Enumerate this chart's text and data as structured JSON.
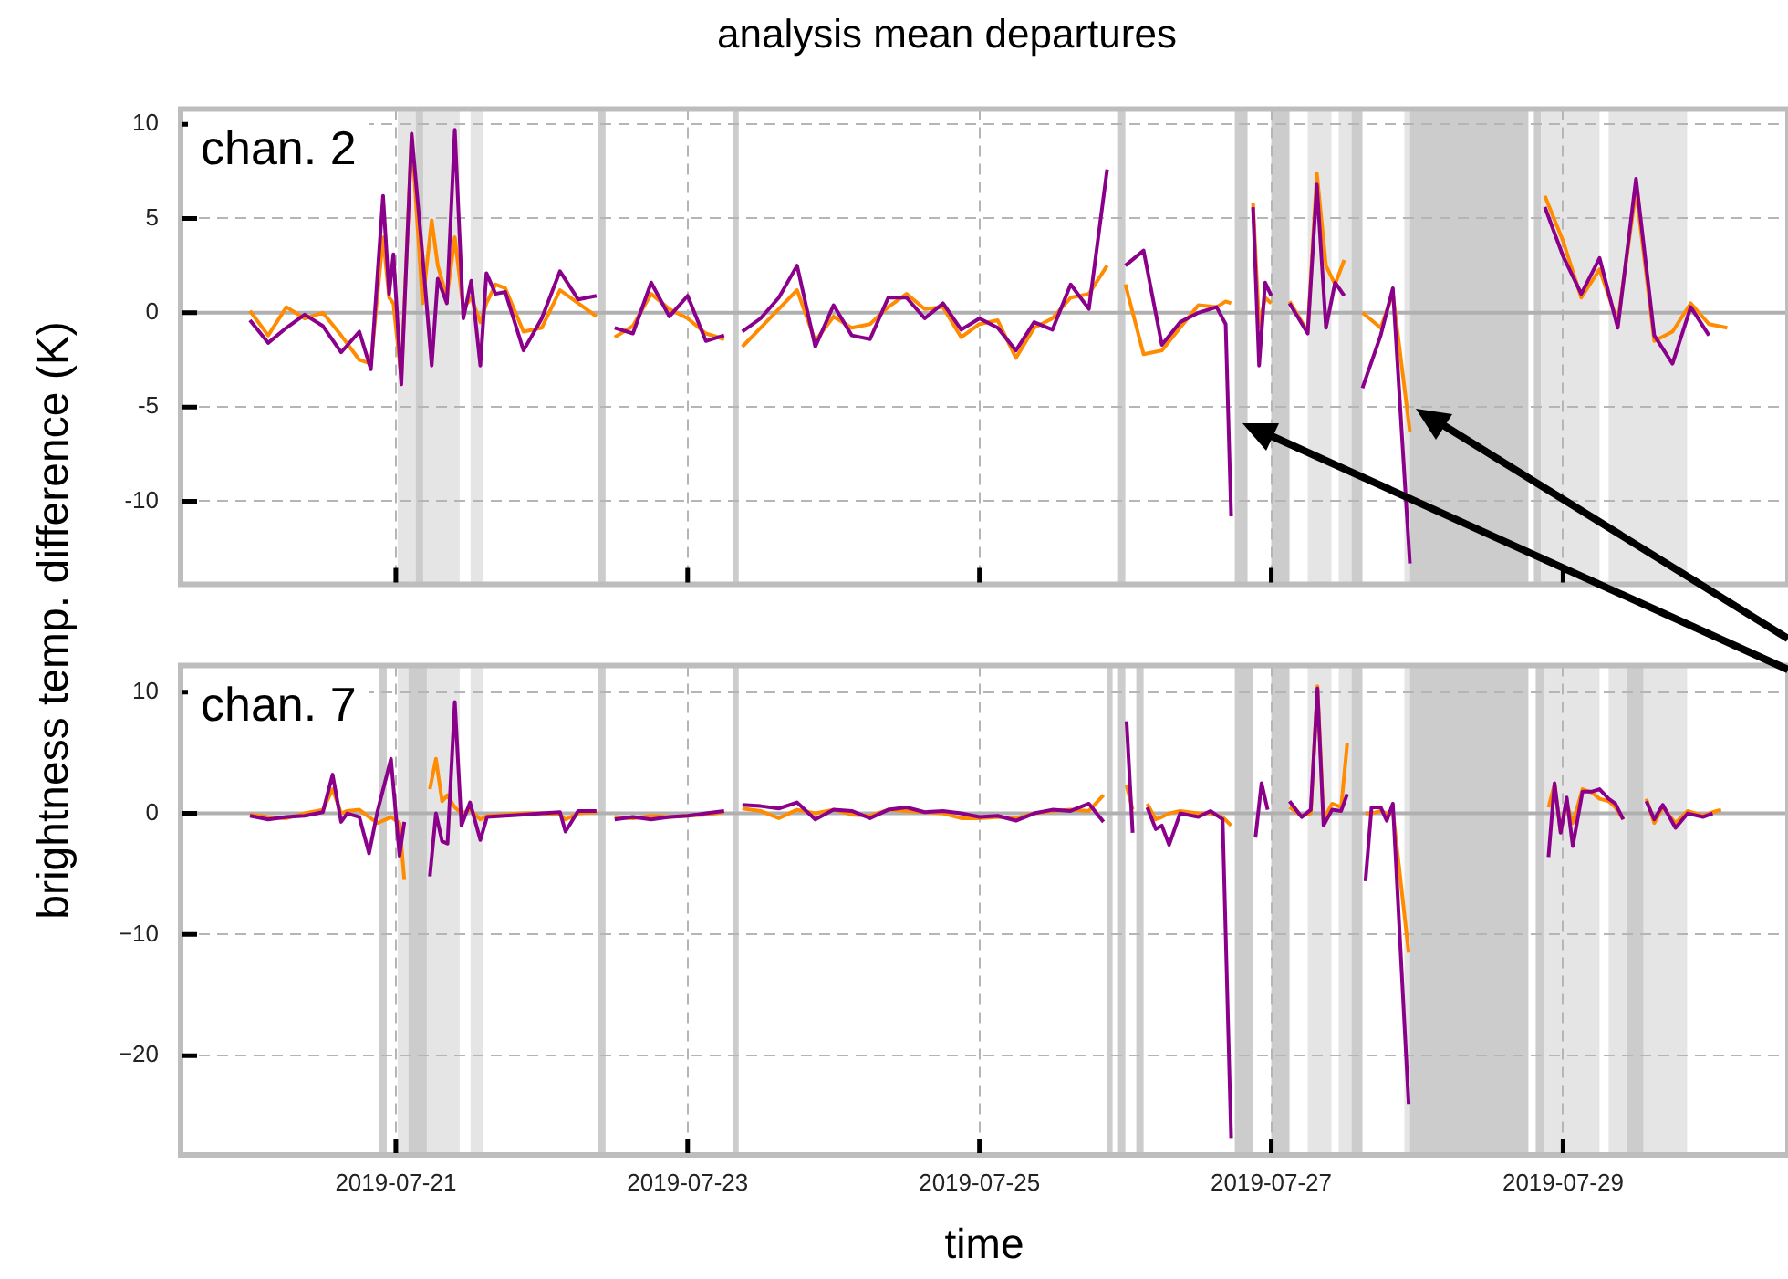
{
  "chart_data": [
    {
      "type": "line",
      "title": "analysis mean departures",
      "ylabel": "brightness temp. difference (K)",
      "annotations": [
        "chan. 2"
      ],
      "x": [
        "2019-07-20T00:00",
        "2019-07-20T03:00",
        "2019-07-20T06:00",
        "2019-07-20T09:00",
        "2019-07-20T12:00",
        "2019-07-20T15:00",
        "2019-07-20T18:00",
        "2019-07-20T19:54",
        "2019-07-20T21:54",
        "2019-07-20T22:54",
        "2019-07-20T23:36",
        "2019-07-21T00:54",
        "2019-07-21T02:36",
        "2019-07-21T04:24",
        "2019-07-21T05:54",
        "2019-07-21T06:54",
        "2019-07-21T08:24",
        "2019-07-21T09:42",
        "2019-07-21T11:06",
        "2019-07-21T12:24",
        "2019-07-21T13:54",
        "2019-07-21T14:54",
        "2019-07-21T16:24",
        "2019-07-21T18:00",
        "2019-07-21T21:00",
        "2019-07-22T00:00",
        "2019-07-22T03:00",
        "2019-07-22T06:00",
        "2019-07-22T09:00",
        "2019-07-22T10:30",
        "2019-07-22T12:00",
        "2019-07-22T15:00",
        "2019-07-22T18:00",
        "2019-07-22T21:00",
        "2019-07-23T00:00",
        "2019-07-23T03:00",
        "2019-07-23T06:00",
        "2019-07-23T08:00",
        "2019-07-23T09:00",
        "2019-07-23T12:00",
        "2019-07-23T15:00",
        "2019-07-23T18:00",
        "2019-07-23T21:00",
        "2019-07-24T00:00",
        "2019-07-24T03:00",
        "2019-07-24T06:00",
        "2019-07-24T09:00",
        "2019-07-24T12:00",
        "2019-07-24T15:00",
        "2019-07-24T18:00",
        "2019-07-24T21:00",
        "2019-07-25T00:00",
        "2019-07-25T03:00",
        "2019-07-25T06:00",
        "2019-07-25T09:00",
        "2019-07-25T12:00",
        "2019-07-25T15:00",
        "2019-07-25T18:00",
        "2019-07-25T21:00",
        "2019-07-25T23:00",
        "2019-07-26T00:00",
        "2019-07-26T03:00",
        "2019-07-26T06:00",
        "2019-07-26T09:00",
        "2019-07-26T12:00",
        "2019-07-26T15:00",
        "2019-07-26T16:30",
        "2019-07-26T17:24",
        "2019-07-26T19:00",
        "2019-07-26T21:00",
        "2019-07-26T22:00",
        "2019-07-26T23:00",
        "2019-07-27T00:00",
        "2019-07-27T01:30",
        "2019-07-27T03:00",
        "2019-07-27T06:00",
        "2019-07-27T07:30",
        "2019-07-27T09:00",
        "2019-07-27T10:30",
        "2019-07-27T12:00",
        "2019-07-27T14:00",
        "2019-07-27T15:00",
        "2019-07-27T18:00",
        "2019-07-27T20:00",
        "2019-07-27T22:48",
        "2019-07-28T12:00",
        "2019-07-28T21:00",
        "2019-07-29T00:00",
        "2019-07-29T03:00",
        "2019-07-29T06:00",
        "2019-07-29T09:00",
        "2019-07-29T12:00",
        "2019-07-29T15:00",
        "2019-07-29T18:00",
        "2019-07-29T21:00",
        "2019-07-30T00:00",
        "2019-07-30T03:00"
      ],
      "series": [
        {
          "color": "#ff8c00",
          "values": [
            0.1,
            -1.2,
            0.3,
            -0.3,
            0.0,
            -1.2,
            -2.5,
            -2.7,
            4.0,
            0.8,
            0.5,
            -3.5,
            9.4,
            0.5,
            4.9,
            2.5,
            0.8,
            4.0,
            0.2,
            0.8,
            -0.5,
            0.5,
            1.5,
            1.3,
            -1.0,
            -0.8,
            1.2,
            0.5,
            -0.2,
            null,
            -1.3,
            -0.7,
            1.0,
            0.2,
            -0.3,
            -1.1,
            -1.4,
            null,
            -1.8,
            -0.8,
            0.2,
            1.2,
            -1.5,
            -0.2,
            -0.8,
            -0.6,
            0.3,
            1.0,
            0.2,
            0.3,
            -1.3,
            -0.6,
            -0.4,
            -2.4,
            -0.8,
            -0.3,
            0.8,
            1.0,
            2.5,
            null,
            1.5,
            -2.2,
            -2.0,
            -0.8,
            0.4,
            0.3,
            0.6,
            0.5,
            null,
            5.8,
            -0.7,
            0.8,
            0.5,
            null,
            0.6,
            -1.0,
            7.4,
            2.5,
            1.5,
            2.8,
            null,
            0.0,
            -0.8,
            1.0,
            -6.3,
            null,
            6.2,
            3.8,
            0.8,
            2.3,
            -0.5,
            6.5,
            -1.5,
            -1.0,
            0.5,
            -0.6,
            -0.8
          ]
        },
        {
          "color": "#8b008b",
          "values": [
            -0.4,
            -1.6,
            -0.8,
            -0.1,
            -0.7,
            -2.1,
            -1.0,
            -3.0,
            6.2,
            1.0,
            3.1,
            -3.8,
            9.5,
            3.0,
            -2.8,
            1.8,
            0.5,
            9.7,
            -0.3,
            1.7,
            -2.8,
            2.1,
            1.0,
            1.1,
            -2.0,
            -0.3,
            2.2,
            0.7,
            0.9,
            null,
            -0.8,
            -1.1,
            1.6,
            -0.2,
            0.9,
            -1.5,
            -1.2,
            null,
            -1.0,
            -0.3,
            0.8,
            2.5,
            -1.8,
            0.4,
            -1.2,
            -1.4,
            0.8,
            0.8,
            -0.3,
            0.5,
            -0.9,
            -0.3,
            -0.8,
            -2.0,
            -0.5,
            -0.9,
            1.5,
            0.2,
            7.6,
            null,
            2.5,
            3.3,
            -1.7,
            -0.5,
            0.0,
            0.3,
            -0.6,
            -10.8,
            null,
            5.6,
            -2.8,
            1.6,
            0.9,
            null,
            0.5,
            -1.1,
            6.8,
            -0.8,
            1.6,
            0.9,
            null,
            -4.0,
            -1.2,
            1.3,
            -13.3,
            null,
            5.6,
            3.0,
            1.0,
            2.9,
            -0.8,
            7.1,
            -1.2,
            -2.7,
            0.3,
            -1.2,
            null
          ]
        }
      ],
      "xlim": [
        "2019-07-19T12:36",
        "2019-07-30T13:00"
      ],
      "xticks": [
        "2019-07-21",
        "2019-07-23",
        "2019-07-25",
        "2019-07-27",
        "2019-07-29"
      ],
      "ylim": [
        -14.4,
        10.8
      ],
      "yticks": [
        -10,
        -5,
        0,
        5,
        10
      ],
      "grid": true,
      "tick_labels": "y",
      "ref_lines": [
        {
          "axis": "y",
          "value": 0,
          "color": "#b0b0b0"
        }
      ],
      "bands": [
        {
          "axis": "x",
          "from": "2019-07-21T00:18",
          "to": "2019-07-21T10:30",
          "color": "#e5e5e5"
        },
        {
          "axis": "x",
          "from": "2019-07-21T03:18",
          "to": "2019-07-21T04:30",
          "color": "#cccccc"
        },
        {
          "axis": "x",
          "from": "2019-07-21T12:18",
          "to": "2019-07-21T14:24",
          "color": "#e5e5e5"
        },
        {
          "axis": "x",
          "from": "2019-07-22T09:18",
          "to": "2019-07-22T10:30",
          "color": "#cccccc"
        },
        {
          "axis": "x",
          "from": "2019-07-23T07:30",
          "to": "2019-07-23T08:24",
          "color": "#cccccc"
        },
        {
          "axis": "x",
          "from": "2019-07-25T22:48",
          "to": "2019-07-26T00:00",
          "color": "#cccccc"
        },
        {
          "axis": "x",
          "from": "2019-07-26T18:00",
          "to": "2019-07-26T20:06",
          "color": "#cccccc"
        },
        {
          "axis": "x",
          "from": "2019-07-27T00:00",
          "to": "2019-07-27T03:00",
          "color": "#cccccc"
        },
        {
          "axis": "x",
          "from": "2019-07-27T06:00",
          "to": "2019-07-27T09:54",
          "color": "#e5e5e5"
        },
        {
          "axis": "x",
          "from": "2019-07-27T11:06",
          "to": "2019-07-27T13:12",
          "color": "#e5e5e5"
        },
        {
          "axis": "x",
          "from": "2019-07-27T13:12",
          "to": "2019-07-27T15:00",
          "color": "#cccccc"
        },
        {
          "axis": "x",
          "from": "2019-07-27T21:54",
          "to": "2019-07-27T22:48",
          "color": "#e5e5e5"
        },
        {
          "axis": "x",
          "from": "2019-07-27T22:48",
          "to": "2019-07-28T18:18",
          "color": "#cccccc"
        },
        {
          "axis": "x",
          "from": "2019-07-28T19:12",
          "to": "2019-07-28T20:24",
          "color": "#cccccc"
        },
        {
          "axis": "x",
          "from": "2019-07-28T20:24",
          "to": "2019-07-29T06:00",
          "color": "#e5e5e5"
        },
        {
          "axis": "x",
          "from": "2019-07-29T07:30",
          "to": "2019-07-29T20:24",
          "color": "#e5e5e5"
        }
      ]
    },
    {
      "type": "line",
      "xlabel": "time",
      "annotations": [
        "chan. 7"
      ],
      "x": [
        "2019-07-20T00:00",
        "2019-07-20T03:00",
        "2019-07-20T06:00",
        "2019-07-20T09:00",
        "2019-07-20T12:00",
        "2019-07-20T13:36",
        "2019-07-20T15:00",
        "2019-07-20T16:00",
        "2019-07-20T18:00",
        "2019-07-20T19:36",
        "2019-07-20T21:00",
        "2019-07-20T23:12",
        "2019-07-21T00:36",
        "2019-07-21T01:24",
        "2019-07-21T03:00",
        "2019-07-21T05:36",
        "2019-07-21T06:36",
        "2019-07-21T07:36",
        "2019-07-21T08:30",
        "2019-07-21T09:42",
        "2019-07-21T10:48",
        "2019-07-21T12:12",
        "2019-07-21T13:54",
        "2019-07-21T15:00",
        "2019-07-21T18:00",
        "2019-07-21T21:00",
        "2019-07-22T00:00",
        "2019-07-22T03:00",
        "2019-07-22T03:54",
        "2019-07-22T06:00",
        "2019-07-22T09:00",
        "2019-07-22T10:30",
        "2019-07-22T12:00",
        "2019-07-22T15:00",
        "2019-07-22T18:00",
        "2019-07-22T21:00",
        "2019-07-23T00:00",
        "2019-07-23T03:00",
        "2019-07-23T06:00",
        "2019-07-23T08:00",
        "2019-07-23T09:00",
        "2019-07-23T12:00",
        "2019-07-23T15:00",
        "2019-07-23T18:00",
        "2019-07-23T21:00",
        "2019-07-24T00:00",
        "2019-07-24T03:00",
        "2019-07-24T06:00",
        "2019-07-24T09:00",
        "2019-07-24T12:00",
        "2019-07-24T15:00",
        "2019-07-24T18:00",
        "2019-07-24T21:00",
        "2019-07-25T00:00",
        "2019-07-25T03:00",
        "2019-07-25T06:00",
        "2019-07-25T09:00",
        "2019-07-25T12:00",
        "2019-07-25T15:00",
        "2019-07-25T18:00",
        "2019-07-25T20:24",
        "2019-07-25T21:30",
        "2019-07-26T00:12",
        "2019-07-26T01:12",
        "2019-07-26T02:24",
        "2019-07-26T03:36",
        "2019-07-26T05:00",
        "2019-07-26T06:00",
        "2019-07-26T07:12",
        "2019-07-26T09:00",
        "2019-07-26T12:00",
        "2019-07-26T14:00",
        "2019-07-26T16:00",
        "2019-07-26T17:24",
        "2019-07-26T19:00",
        "2019-07-26T21:24",
        "2019-07-26T22:24",
        "2019-07-26T23:24",
        "2019-07-27T01:30",
        "2019-07-27T03:00",
        "2019-07-27T05:00",
        "2019-07-27T06:30",
        "2019-07-27T07:36",
        "2019-07-27T08:36",
        "2019-07-27T10:00",
        "2019-07-27T11:30",
        "2019-07-27T12:30",
        "2019-07-27T14:00",
        "2019-07-27T15:30",
        "2019-07-27T16:30",
        "2019-07-27T18:00",
        "2019-07-27T19:00",
        "2019-07-27T20:00",
        "2019-07-27T22:36",
        "2019-07-28T12:00",
        "2019-07-28T21:36",
        "2019-07-28T22:36",
        "2019-07-28T23:36",
        "2019-07-29T00:36",
        "2019-07-29T01:36",
        "2019-07-29T03:12",
        "2019-07-29T04:48",
        "2019-07-29T06:00",
        "2019-07-29T07:30",
        "2019-07-29T08:36",
        "2019-07-29T09:54",
        "2019-07-29T11:30",
        "2019-07-29T13:42",
        "2019-07-29T15:00",
        "2019-07-29T16:24",
        "2019-07-29T18:30",
        "2019-07-29T20:30",
        "2019-07-29T23:00",
        "2019-07-30T00:36",
        "2019-07-30T02:00"
      ],
      "series": [
        {
          "color": "#ff8c00",
          "values": [
            -0.1,
            -0.3,
            -0.4,
            0.0,
            0.3,
            2.0,
            0.0,
            0.2,
            0.3,
            -0.3,
            -0.8,
            -0.3,
            -0.8,
            -5.5,
            null,
            2.0,
            4.5,
            1.0,
            1.5,
            0.5,
            0.0,
            0.3,
            -0.5,
            -0.2,
            -0.1,
            0.0,
            0.0,
            -0.1,
            -0.5,
            0.0,
            0.1,
            null,
            -0.3,
            -0.4,
            -0.2,
            -0.3,
            -0.2,
            -0.1,
            0.1,
            null,
            0.4,
            0.2,
            -0.4,
            0.3,
            0.0,
            0.3,
            -0.1,
            -0.2,
            0.3,
            0.2,
            0.1,
            0.0,
            -0.4,
            -0.4,
            -0.3,
            -0.4,
            0.0,
            0.2,
            0.3,
            0.2,
            1.5,
            null,
            2.3,
            0.3,
            null,
            0.8,
            -0.5,
            -0.3,
            0.0,
            0.2,
            0.0,
            0.0,
            -0.3,
            -1.0,
            null,
            null,
            null,
            null,
            null,
            0.5,
            -0.2,
            0.0,
            10.5,
            -0.5,
            0.8,
            0.5,
            5.8,
            null,
            0.0,
            0.0,
            0.2,
            0.0,
            0.2,
            -11.5,
            null,
            0.5,
            2.4,
            -1.5,
            0.8,
            -0.8,
            2.0,
            1.7,
            1.2,
            1.0,
            0.5,
            -0.5,
            null,
            1.2,
            -0.8,
            0.5,
            -0.8,
            0.2,
            -0.2,
            0.1,
            0.3
          ]
        },
        {
          "color": "#8b008b",
          "values": [
            -0.2,
            -0.5,
            -0.3,
            -0.2,
            0.1,
            3.2,
            -0.7,
            0.0,
            -0.3,
            -3.3,
            0.2,
            4.5,
            -3.5,
            -0.7,
            null,
            -5.2,
            0.0,
            -2.3,
            -2.5,
            9.2,
            -1.0,
            0.9,
            -2.2,
            -0.3,
            -0.2,
            -0.1,
            0.0,
            0.1,
            -1.5,
            0.2,
            0.2,
            null,
            -0.5,
            -0.3,
            -0.5,
            -0.3,
            -0.2,
            0.0,
            0.2,
            null,
            0.7,
            0.6,
            0.4,
            0.9,
            -0.5,
            0.3,
            0.2,
            -0.4,
            0.3,
            0.5,
            0.1,
            0.2,
            0.0,
            -0.3,
            -0.2,
            -0.6,
            0.0,
            0.3,
            0.2,
            0.8,
            -0.7,
            null,
            7.6,
            -1.6,
            null,
            0.5,
            -1.3,
            -1.0,
            -2.6,
            0.0,
            -0.3,
            0.2,
            -0.5,
            -26.8,
            null,
            -2.0,
            2.5,
            0.3,
            null,
            1.0,
            -0.3,
            0.3,
            10.3,
            -1.0,
            0.3,
            0.2,
            1.6,
            null,
            -5.6,
            0.5,
            0.5,
            -0.6,
            0.8,
            -24.0,
            null,
            -3.6,
            2.5,
            -1.6,
            1.3,
            -2.7,
            1.8,
            1.8,
            2.0,
            1.2,
            0.8,
            -0.5,
            null,
            1.0,
            -0.5,
            0.7,
            -1.2,
            0.0,
            -0.3,
            0.0,
            null
          ]
        }
      ],
      "xlim": [
        "2019-07-19T12:36",
        "2019-07-30T13:00"
      ],
      "xticks": [
        "2019-07-21",
        "2019-07-23",
        "2019-07-25",
        "2019-07-27",
        "2019-07-29"
      ],
      "ylim": [
        -28.2,
        12.2
      ],
      "yticks": [
        {
          "value": -20,
          "label": "−20"
        },
        {
          "value": -10,
          "label": "−10"
        },
        0,
        10
      ],
      "grid": true,
      "ref_lines": [
        {
          "axis": "y",
          "value": 0,
          "color": "#b0b0b0"
        }
      ],
      "bands": [
        {
          "axis": "x",
          "from": "2019-07-20T21:18",
          "to": "2019-07-20T22:30",
          "color": "#cccccc"
        },
        {
          "axis": "x",
          "from": "2019-07-21T00:18",
          "to": "2019-07-21T10:30",
          "color": "#e5e5e5"
        },
        {
          "axis": "x",
          "from": "2019-07-21T02:06",
          "to": "2019-07-21T05:06",
          "color": "#cccccc"
        },
        {
          "axis": "x",
          "from": "2019-07-21T12:18",
          "to": "2019-07-21T14:24",
          "color": "#e5e5e5"
        },
        {
          "axis": "x",
          "from": "2019-07-22T09:18",
          "to": "2019-07-22T10:30",
          "color": "#cccccc"
        },
        {
          "axis": "x",
          "from": "2019-07-23T07:30",
          "to": "2019-07-23T08:24",
          "color": "#cccccc"
        },
        {
          "axis": "x",
          "from": "2019-07-25T21:00",
          "to": "2019-07-25T21:54",
          "color": "#cccccc"
        },
        {
          "axis": "x",
          "from": "2019-07-25T22:48",
          "to": "2019-07-26T00:00",
          "color": "#cccccc"
        },
        {
          "axis": "x",
          "from": "2019-07-26T01:48",
          "to": "2019-07-26T03:00",
          "color": "#cccccc"
        },
        {
          "axis": "x",
          "from": "2019-07-26T18:00",
          "to": "2019-07-26T21:00",
          "color": "#cccccc"
        },
        {
          "axis": "x",
          "from": "2019-07-27T00:00",
          "to": "2019-07-27T03:00",
          "color": "#cccccc"
        },
        {
          "axis": "x",
          "from": "2019-07-27T06:00",
          "to": "2019-07-27T09:54",
          "color": "#e5e5e5"
        },
        {
          "axis": "x",
          "from": "2019-07-27T11:06",
          "to": "2019-07-27T13:12",
          "color": "#e5e5e5"
        },
        {
          "axis": "x",
          "from": "2019-07-27T13:12",
          "to": "2019-07-27T15:00",
          "color": "#cccccc"
        },
        {
          "axis": "x",
          "from": "2019-07-27T21:54",
          "to": "2019-07-27T22:48",
          "color": "#e5e5e5"
        },
        {
          "axis": "x",
          "from": "2019-07-27T22:48",
          "to": "2019-07-28T18:18",
          "color": "#cccccc"
        },
        {
          "axis": "x",
          "from": "2019-07-28T19:30",
          "to": "2019-07-28T21:00",
          "color": "#cccccc"
        },
        {
          "axis": "x",
          "from": "2019-07-28T21:00",
          "to": "2019-07-29T06:00",
          "color": "#e5e5e5"
        },
        {
          "axis": "x",
          "from": "2019-07-29T07:30",
          "to": "2019-07-29T20:24",
          "color": "#e5e5e5"
        },
        {
          "axis": "x",
          "from": "2019-07-29T10:30",
          "to": "2019-07-29T13:12",
          "color": "#cccccc"
        }
      ]
    }
  ]
}
